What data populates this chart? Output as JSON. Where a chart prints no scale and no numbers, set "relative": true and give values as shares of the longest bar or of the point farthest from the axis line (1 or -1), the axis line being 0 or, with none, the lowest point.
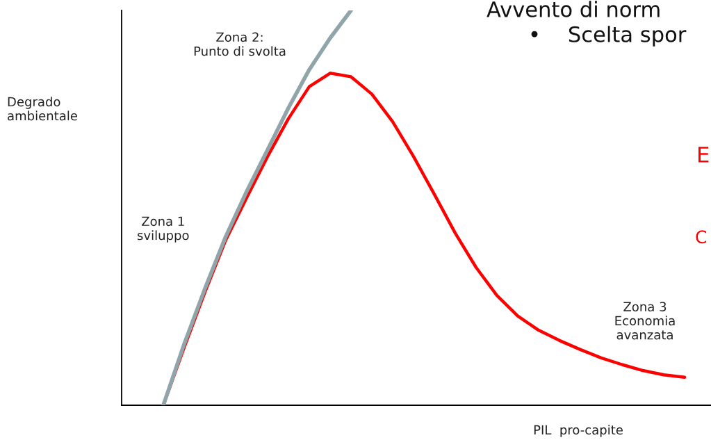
{
  "chart_data": {
    "type": "line",
    "relative": true,
    "xlabel": "PIL  pro-capite",
    "ylabel": "Degrado\nambientale",
    "categories": [
      null,
      null,
      null,
      null,
      null,
      null,
      null,
      null,
      null,
      null,
      null,
      null,
      null,
      null,
      null,
      null,
      null,
      null,
      null,
      null,
      null,
      null,
      null,
      null,
      null,
      null,
      null,
      null,
      null
    ],
    "series": [
      {
        "color": "#ff0000",
        "values": [
          null,
          null,
          0,
          0.146,
          0.287,
          0.419,
          0.526,
          0.63,
          0.726,
          0.807,
          0.841,
          0.832,
          0.788,
          0.718,
          0.63,
          0.534,
          0.436,
          0.349,
          0.278,
          0.226,
          0.19,
          0.164,
          0.141,
          0.12,
          0.103,
          0.088,
          0.077,
          0.071,
          null
        ]
      },
      {
        "color": "#8fa5aa",
        "values": [
          null,
          null,
          0,
          0.155,
          0.296,
          0.428,
          0.542,
          0.647,
          0.753,
          0.85,
          0.93,
          1.0,
          null,
          null,
          null,
          null,
          null,
          null,
          null,
          null,
          null,
          null,
          null,
          null,
          null,
          null,
          null,
          null,
          null
        ]
      }
    ],
    "annotations": [
      "Zona 2:\nPunto di svolta",
      "Zona 1\nsviluppo",
      "Zona 3\nEconomia\navanzata",
      "Avvento di norm",
      "•    Scelta spor",
      "E",
      "C"
    ],
    "grid": false,
    "legend": false,
    "marker": "none",
    "line_style": "solid"
  }
}
